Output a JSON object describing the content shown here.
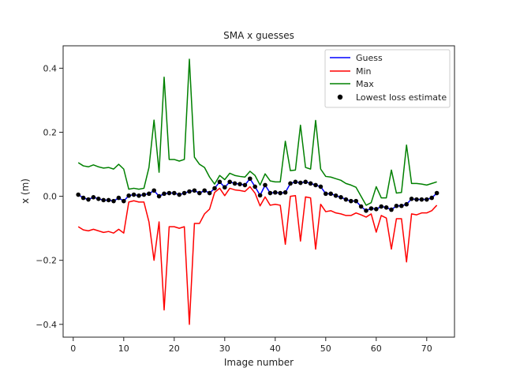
{
  "chart_data": {
    "type": "line",
    "title": "SMA x guesses",
    "xlabel": "Image number",
    "ylabel": "x (m)",
    "xlim": [
      -2,
      75.5
    ],
    "ylim": [
      -0.44,
      0.47
    ],
    "xticks": [
      0,
      10,
      20,
      30,
      40,
      50,
      60,
      70
    ],
    "yticks": [
      -0.4,
      -0.2,
      0.0,
      0.2,
      0.4
    ],
    "xtick_labels": [
      "0",
      "10",
      "20",
      "30",
      "40",
      "50",
      "60",
      "70"
    ],
    "ytick_labels": [
      "−0.4",
      "−0.2",
      "0.0",
      "0.2",
      "0.4"
    ],
    "grid": false,
    "legend_position": "top-right",
    "x": [
      1,
      2,
      3,
      4,
      5,
      6,
      7,
      8,
      9,
      10,
      11,
      12,
      13,
      14,
      15,
      16,
      17,
      18,
      19,
      20,
      21,
      22,
      23,
      24,
      25,
      26,
      27,
      28,
      29,
      30,
      31,
      32,
      33,
      34,
      35,
      36,
      37,
      38,
      39,
      40,
      41,
      42,
      43,
      44,
      45,
      46,
      47,
      48,
      49,
      50,
      51,
      52,
      53,
      54,
      55,
      56,
      57,
      58,
      59,
      60,
      61,
      62,
      63,
      64,
      65,
      66,
      67,
      68,
      69,
      70,
      71,
      72
    ],
    "series": [
      {
        "name": "Guess",
        "color": "#0000ff",
        "values": [
          0.005,
          -0.005,
          -0.01,
          -0.003,
          -0.008,
          -0.012,
          -0.012,
          -0.015,
          -0.005,
          -0.015,
          0.002,
          0.005,
          0.002,
          0.005,
          0.008,
          0.018,
          0.0,
          0.008,
          0.01,
          0.01,
          0.005,
          0.01,
          0.015,
          0.018,
          0.01,
          0.018,
          0.01,
          0.025,
          0.045,
          0.028,
          0.045,
          0.04,
          0.038,
          0.035,
          0.055,
          0.03,
          0.003,
          0.035,
          0.01,
          0.012,
          0.01,
          0.012,
          0.04,
          0.045,
          0.042,
          0.045,
          0.04,
          0.035,
          0.03,
          0.008,
          0.008,
          0.002,
          -0.003,
          -0.01,
          -0.015,
          -0.015,
          -0.032,
          -0.045,
          -0.038,
          -0.04,
          -0.032,
          -0.035,
          -0.042,
          -0.03,
          -0.03,
          -0.025,
          -0.008,
          -0.01,
          -0.01,
          -0.01,
          -0.005,
          0.01
        ]
      },
      {
        "name": "Min",
        "color": "#ff0000",
        "values": [
          -0.095,
          -0.105,
          -0.108,
          -0.103,
          -0.108,
          -0.113,
          -0.11,
          -0.115,
          -0.103,
          -0.115,
          -0.018,
          -0.014,
          -0.018,
          -0.018,
          -0.08,
          -0.2,
          -0.08,
          -0.355,
          -0.095,
          -0.095,
          -0.1,
          -0.095,
          -0.4,
          -0.085,
          -0.085,
          -0.055,
          -0.04,
          0.012,
          0.025,
          0.002,
          0.025,
          0.02,
          0.018,
          0.015,
          0.03,
          0.01,
          -0.03,
          -0.002,
          -0.028,
          -0.025,
          -0.028,
          -0.15,
          0.0,
          0.002,
          -0.14,
          -0.002,
          -0.005,
          -0.165,
          -0.025,
          -0.048,
          -0.045,
          -0.052,
          -0.055,
          -0.06,
          -0.06,
          -0.052,
          -0.058,
          -0.065,
          -0.055,
          -0.112,
          -0.06,
          -0.068,
          -0.165,
          -0.07,
          -0.07,
          -0.205,
          -0.055,
          -0.058,
          -0.052,
          -0.052,
          -0.045,
          -0.028
        ]
      },
      {
        "name": "Max",
        "color": "#008000",
        "values": [
          0.105,
          0.095,
          0.092,
          0.098,
          0.092,
          0.088,
          0.09,
          0.085,
          0.1,
          0.085,
          0.022,
          0.025,
          0.022,
          0.025,
          0.09,
          0.238,
          0.075,
          0.372,
          0.115,
          0.115,
          0.11,
          0.115,
          0.428,
          0.122,
          0.1,
          0.09,
          0.06,
          0.038,
          0.065,
          0.052,
          0.072,
          0.065,
          0.062,
          0.06,
          0.078,
          0.065,
          0.035,
          0.07,
          0.048,
          0.045,
          0.045,
          0.172,
          0.08,
          0.082,
          0.222,
          0.09,
          0.085,
          0.237,
          0.085,
          0.062,
          0.06,
          0.055,
          0.05,
          0.04,
          0.035,
          0.028,
          0.0,
          -0.028,
          -0.02,
          0.03,
          -0.005,
          -0.005,
          0.082,
          0.01,
          0.012,
          0.16,
          0.04,
          0.04,
          0.038,
          0.035,
          0.04,
          0.045
        ]
      }
    ],
    "scatter": {
      "name": "Lowest loss estimate",
      "color": "#000000",
      "values": [
        0.005,
        -0.005,
        -0.01,
        -0.003,
        -0.008,
        -0.012,
        -0.012,
        -0.015,
        -0.005,
        -0.015,
        0.002,
        0.005,
        0.002,
        0.005,
        0.008,
        0.018,
        0.0,
        0.008,
        0.01,
        0.01,
        0.005,
        0.01,
        0.015,
        0.018,
        0.01,
        0.018,
        0.01,
        0.025,
        0.045,
        0.028,
        0.045,
        0.04,
        0.038,
        0.035,
        0.055,
        0.03,
        0.003,
        0.035,
        0.01,
        0.012,
        0.01,
        0.012,
        0.04,
        0.045,
        0.042,
        0.045,
        0.04,
        0.035,
        0.03,
        0.008,
        0.008,
        0.002,
        -0.003,
        -0.01,
        -0.015,
        -0.015,
        -0.032,
        -0.045,
        -0.038,
        -0.04,
        -0.032,
        -0.035,
        -0.042,
        -0.03,
        -0.03,
        -0.025,
        -0.008,
        -0.01,
        -0.01,
        -0.01,
        -0.005,
        0.01
      ]
    }
  }
}
